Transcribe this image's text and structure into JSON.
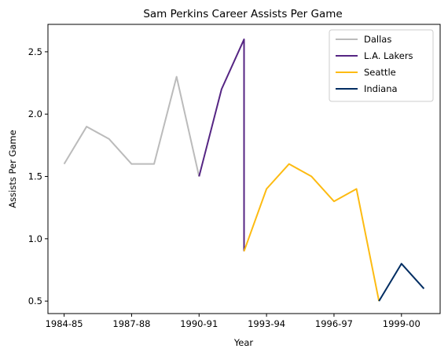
{
  "chart_data": {
    "type": "line",
    "title": "Sam Perkins Career Assists Per Game",
    "xlabel": "Year",
    "ylabel": "Assists Per Game",
    "x_tick_labels": [
      "1984-85",
      "1987-88",
      "1990-91",
      "1993-94",
      "1996-97",
      "1999-00"
    ],
    "y_ticks": [
      0.5,
      1.0,
      1.5,
      2.0,
      2.5
    ],
    "y_tick_labels": [
      "0.5",
      "1.0",
      "1.5",
      "2.0",
      "2.5"
    ],
    "ylim": [
      0.4,
      2.72
    ],
    "grid": false,
    "legend_position": "top-right",
    "series": [
      {
        "name": "Dallas",
        "color": "#bbbbbb",
        "x": [
          "1984-85",
          "1985-86",
          "1986-87",
          "1987-88",
          "1988-89",
          "1989-90",
          "1990-91"
        ],
        "values": [
          1.6,
          1.9,
          1.8,
          1.6,
          1.6,
          2.3,
          1.5
        ]
      },
      {
        "name": "L.A. Lakers",
        "color": "#552583",
        "x": [
          "1990-91",
          "1991-92",
          "1992-93",
          "1992-93"
        ],
        "values": [
          1.5,
          2.2,
          2.6,
          0.9
        ]
      },
      {
        "name": "Seattle",
        "color": "#fdbb12",
        "x": [
          "1992-93",
          "1993-94",
          "1994-95",
          "1995-96",
          "1996-97",
          "1997-98",
          "1998-99"
        ],
        "values": [
          0.9,
          1.4,
          1.6,
          1.5,
          1.3,
          1.4,
          0.5
        ]
      },
      {
        "name": "Indiana",
        "color": "#002d62",
        "x": [
          "1998-99",
          "1999-00",
          "2000-01"
        ],
        "values": [
          0.5,
          0.8,
          0.6
        ]
      }
    ]
  }
}
